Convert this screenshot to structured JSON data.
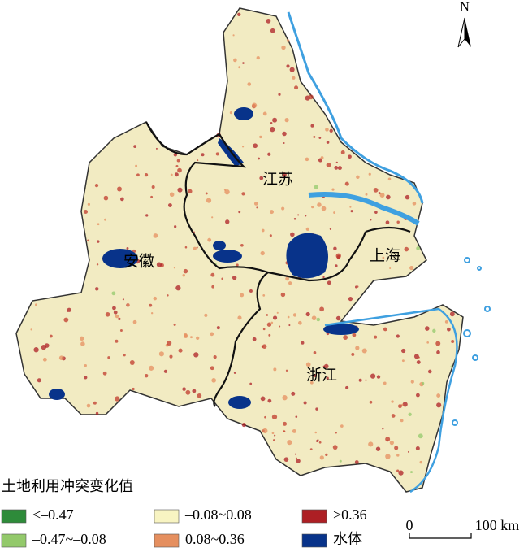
{
  "map": {
    "north_label": "N",
    "regions": [
      {
        "label": "江苏"
      },
      {
        "label": "安徽"
      },
      {
        "label": "上海"
      },
      {
        "label": "浙江"
      }
    ],
    "legend": {
      "title": "土地利用冲突变化值",
      "items": [
        {
          "label": "<–0.47",
          "color": "#2e8b3a"
        },
        {
          "label": "–0.47~–0.08",
          "color": "#93c96b"
        },
        {
          "label": "–0.08~0.08",
          "color": "#f8f4c2"
        },
        {
          "label": "0.08~0.36",
          "color": "#e58f5f"
        },
        {
          "label": ">0.36",
          "color": "#ad1f24"
        },
        {
          "label": "水体",
          "color": "#08338a"
        }
      ]
    },
    "scale_bar": {
      "start": "0",
      "end": "100 km"
    }
  }
}
